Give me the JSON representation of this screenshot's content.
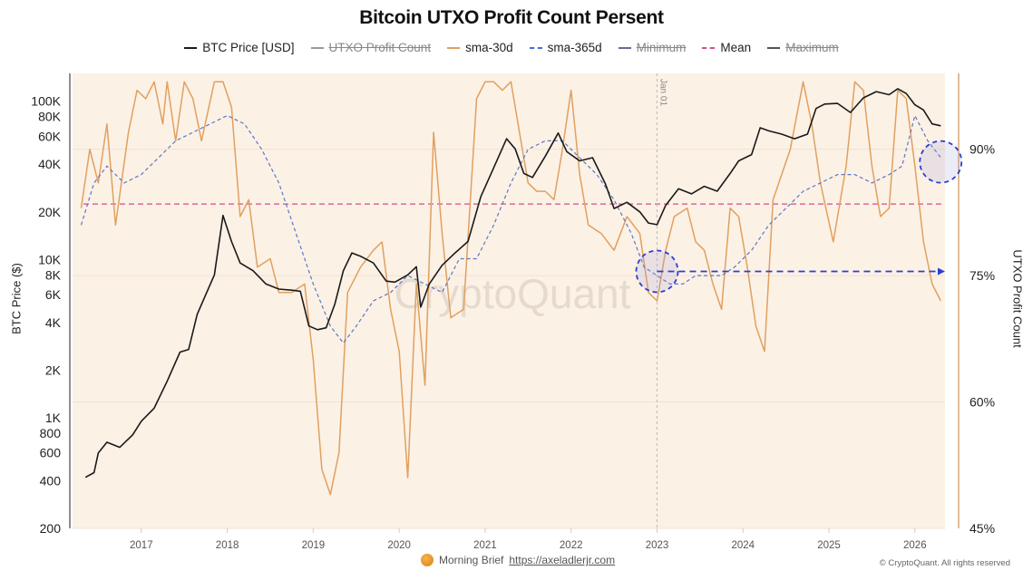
{
  "chart_data": {
    "type": "line",
    "title": "Bitcoin UTXO Profit Count Persent",
    "legend": [
      {
        "label": "BTC Price [USD]",
        "color": "#1a1a1a",
        "style": "solid",
        "hidden": false
      },
      {
        "label": "UTXO Profit Count",
        "color": "#888888",
        "style": "solid",
        "hidden": true
      },
      {
        "label": "sma-30d",
        "color": "#e0a060",
        "style": "solid",
        "hidden": false
      },
      {
        "label": "sma-365d",
        "color": "#4a6fd0",
        "style": "dashed",
        "hidden": false
      },
      {
        "label": "Minimum",
        "color": "#6a6a9a",
        "style": "solid",
        "hidden": true
      },
      {
        "label": "Mean",
        "color": "#d0508a",
        "style": "dashed",
        "hidden": false
      },
      {
        "label": "Maximum",
        "color": "#555555",
        "style": "solid",
        "hidden": true
      }
    ],
    "legend_position": "top",
    "xlabel": "",
    "ylabel_left": "BTC Price ($)",
    "ylabel_right": "UTXO Profit Count",
    "x_ticks": [
      "2017",
      "2018",
      "2019",
      "2020",
      "2021",
      "2022",
      "2023",
      "2024",
      "2025",
      "2026"
    ],
    "xlim": [
      2016.2,
      2026.35
    ],
    "y_left_scale": "log",
    "y_left_ticks": [
      "100K",
      "80K",
      "60K",
      "40K",
      "20K",
      "10K",
      "8K",
      "6K",
      "4K",
      "2K",
      "1K",
      "800",
      "600",
      "400",
      "200"
    ],
    "y_left_tick_values": [
      100000,
      80000,
      60000,
      40000,
      20000,
      10000,
      8000,
      6000,
      4000,
      2000,
      1000,
      800,
      600,
      400,
      200
    ],
    "y_left_lim": [
      200,
      150000
    ],
    "y_right_ticks": [
      "90%",
      "75%",
      "60%",
      "45%"
    ],
    "y_right_tick_values": [
      90,
      75,
      60,
      45
    ],
    "y_right_lim": [
      45,
      99
    ],
    "annotation_vline": {
      "x": 2023.0,
      "label": "Jan 01"
    },
    "mean_value": 83.5,
    "series": [
      {
        "name": "BTC Price [USD]",
        "axis": "left",
        "x": [
          2016.35,
          2016.45,
          2016.5,
          2016.6,
          2016.75,
          2016.9,
          2017.0,
          2017.15,
          2017.3,
          2017.45,
          2017.55,
          2017.65,
          2017.75,
          2017.85,
          2017.95,
          2018.05,
          2018.15,
          2018.3,
          2018.45,
          2018.6,
          2018.75,
          2018.85,
          2018.95,
          2019.05,
          2019.15,
          2019.25,
          2019.35,
          2019.45,
          2019.55,
          2019.7,
          2019.85,
          2019.95,
          2020.1,
          2020.2,
          2020.25,
          2020.35,
          2020.5,
          2020.65,
          2020.8,
          2020.95,
          2021.1,
          2021.25,
          2021.35,
          2021.45,
          2021.55,
          2021.7,
          2021.85,
          2021.95,
          2022.1,
          2022.25,
          2022.4,
          2022.5,
          2022.65,
          2022.8,
          2022.9,
          2023.0,
          2023.1,
          2023.25,
          2023.4,
          2023.55,
          2023.7,
          2023.85,
          2023.95,
          2024.1,
          2024.2,
          2024.3,
          2024.45,
          2024.6,
          2024.75,
          2024.85,
          2024.95,
          2025.1,
          2025.25,
          2025.4,
          2025.55,
          2025.7,
          2025.8,
          2025.9,
          2026.0,
          2026.1,
          2026.2,
          2026.3
        ],
        "y": [
          420,
          450,
          600,
          700,
          650,
          780,
          950,
          1150,
          1700,
          2600,
          2700,
          4500,
          6000,
          8000,
          19000,
          13000,
          9500,
          8500,
          7000,
          6500,
          6400,
          6300,
          3800,
          3600,
          3700,
          5200,
          8500,
          11000,
          10500,
          9500,
          7300,
          7200,
          8000,
          9000,
          5000,
          7000,
          9200,
          11000,
          13000,
          25000,
          38000,
          58000,
          50000,
          35000,
          33000,
          45000,
          63000,
          48000,
          42000,
          44000,
          30000,
          21000,
          23000,
          20000,
          17000,
          16600,
          22000,
          28000,
          26000,
          29000,
          27000,
          35000,
          42000,
          46000,
          68000,
          65000,
          62000,
          58000,
          62000,
          90000,
          96000,
          97000,
          85000,
          105000,
          115000,
          110000,
          120000,
          112000,
          95000,
          88000,
          72000,
          70000
        ]
      },
      {
        "name": "sma-30d",
        "axis": "right",
        "x": [
          2016.3,
          2016.4,
          2016.5,
          2016.6,
          2016.7,
          2016.85,
          2016.95,
          2017.05,
          2017.15,
          2017.25,
          2017.3,
          2017.4,
          2017.5,
          2017.6,
          2017.7,
          2017.85,
          2017.95,
          2018.05,
          2018.15,
          2018.25,
          2018.35,
          2018.5,
          2018.6,
          2018.75,
          2018.9,
          2019.0,
          2019.1,
          2019.2,
          2019.3,
          2019.4,
          2019.55,
          2019.7,
          2019.8,
          2019.9,
          2020.0,
          2020.1,
          2020.2,
          2020.3,
          2020.4,
          2020.5,
          2020.6,
          2020.75,
          2020.9,
          2021.0,
          2021.1,
          2021.2,
          2021.3,
          2021.4,
          2021.5,
          2021.6,
          2021.7,
          2021.8,
          2021.9,
          2022.0,
          2022.1,
          2022.2,
          2022.35,
          2022.5,
          2022.65,
          2022.8,
          2022.9,
          2023.0,
          2023.1,
          2023.2,
          2023.35,
          2023.45,
          2023.55,
          2023.65,
          2023.75,
          2023.85,
          2023.95,
          2024.05,
          2024.15,
          2024.25,
          2024.35,
          2024.45,
          2024.55,
          2024.7,
          2024.8,
          2024.9,
          2025.05,
          2025.2,
          2025.3,
          2025.4,
          2025.5,
          2025.6,
          2025.7,
          2025.8,
          2025.9,
          2026.0,
          2026.1,
          2026.2,
          2026.3
        ],
        "y": [
          83,
          90,
          86,
          93,
          81,
          92,
          97,
          96,
          98,
          93,
          98,
          91,
          98,
          96,
          91,
          98,
          98,
          95,
          82,
          84,
          76,
          77,
          73,
          73,
          74,
          65,
          52,
          49,
          54,
          73,
          76,
          78,
          79,
          71,
          66,
          51,
          74,
          62,
          92,
          80,
          70,
          71,
          96,
          98,
          98,
          97,
          98,
          92,
          86,
          85,
          85,
          84,
          90,
          97,
          87,
          81,
          80,
          78,
          82,
          80,
          73,
          72,
          78,
          82,
          83,
          79,
          78,
          74,
          71,
          83,
          82,
          76,
          69,
          66,
          84,
          87,
          90,
          98,
          93,
          86,
          79,
          88,
          98,
          97,
          88,
          82,
          83,
          97,
          96,
          88,
          79,
          74,
          72
        ]
      },
      {
        "name": "sma-365d",
        "axis": "right",
        "x": [
          2016.3,
          2016.45,
          2016.6,
          2016.8,
          2017.0,
          2017.2,
          2017.4,
          2017.6,
          2017.8,
          2018.0,
          2018.2,
          2018.4,
          2018.6,
          2018.8,
          2019.0,
          2019.2,
          2019.35,
          2019.5,
          2019.7,
          2019.9,
          2020.1,
          2020.3,
          2020.5,
          2020.7,
          2020.9,
          2021.1,
          2021.3,
          2021.5,
          2021.7,
          2021.9,
          2022.1,
          2022.3,
          2022.5,
          2022.7,
          2022.85,
          2023.0,
          2023.15,
          2023.3,
          2023.45,
          2023.6,
          2023.75,
          2023.9,
          2024.1,
          2024.3,
          2024.5,
          2024.7,
          2024.9,
          2025.1,
          2025.3,
          2025.5,
          2025.7,
          2025.85,
          2026.0,
          2026.15,
          2026.3
        ],
        "y": [
          81,
          86,
          88,
          86,
          87,
          89,
          91,
          92,
          93,
          94,
          93,
          90,
          86,
          80,
          74,
          69,
          67,
          69,
          72,
          73,
          75,
          74,
          73,
          77,
          77,
          81,
          86,
          90,
          91,
          91,
          89,
          87,
          84,
          80,
          76,
          75,
          74,
          74,
          75,
          75,
          75,
          76,
          78,
          81,
          83,
          85,
          86,
          87,
          87,
          86,
          87,
          88,
          94,
          91,
          89
        ]
      }
    ],
    "highlights": [
      {
        "type": "circle",
        "x": 2023.0,
        "y_right": 75.5
      },
      {
        "type": "circle",
        "x": 2026.3,
        "y_right": 88.5
      },
      {
        "type": "arrow",
        "from_x": 2023.0,
        "to_x": 2026.35,
        "y_right": 75.5
      }
    ]
  },
  "watermark": "CryptoQuant",
  "footer": {
    "brand_text": "Morning Brief",
    "link": "https://axeladlerjr.com",
    "copyright": "© CryptoQuant. All rights reserved"
  }
}
